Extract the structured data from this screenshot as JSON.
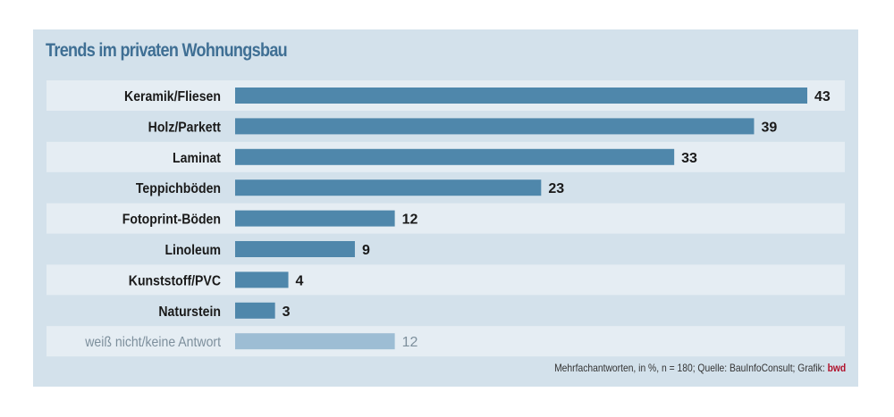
{
  "chart_data": {
    "type": "bar",
    "orientation": "horizontal",
    "title": "Trends im privaten Wohnungsbau",
    "categories": [
      "Keramik/Fliesen",
      "Holz/Parkett",
      "Laminat",
      "Teppichböden",
      "Fotoprint-Böden",
      "Linoleum",
      "Kunststoff/PVC",
      "Naturstein",
      "weiß nicht/keine Antwort"
    ],
    "values": [
      43,
      39,
      33,
      23,
      12,
      9,
      4,
      3,
      12
    ],
    "xlim": [
      0,
      43
    ],
    "grid": false,
    "colors": {
      "bar": "#4f87ab",
      "bar_muted": "#9dbdd4",
      "label": "#1a1a1a",
      "label_muted": "#7d8f9c",
      "band": "#e5edf3",
      "background": "#d3e1eb",
      "title": "#3f6f94",
      "brand": "#b0112b"
    },
    "footnote": "Mehrfachantworten, in %, n = 180; Quelle: BauInfoConsult; Grafik:",
    "brand": "bwd"
  }
}
